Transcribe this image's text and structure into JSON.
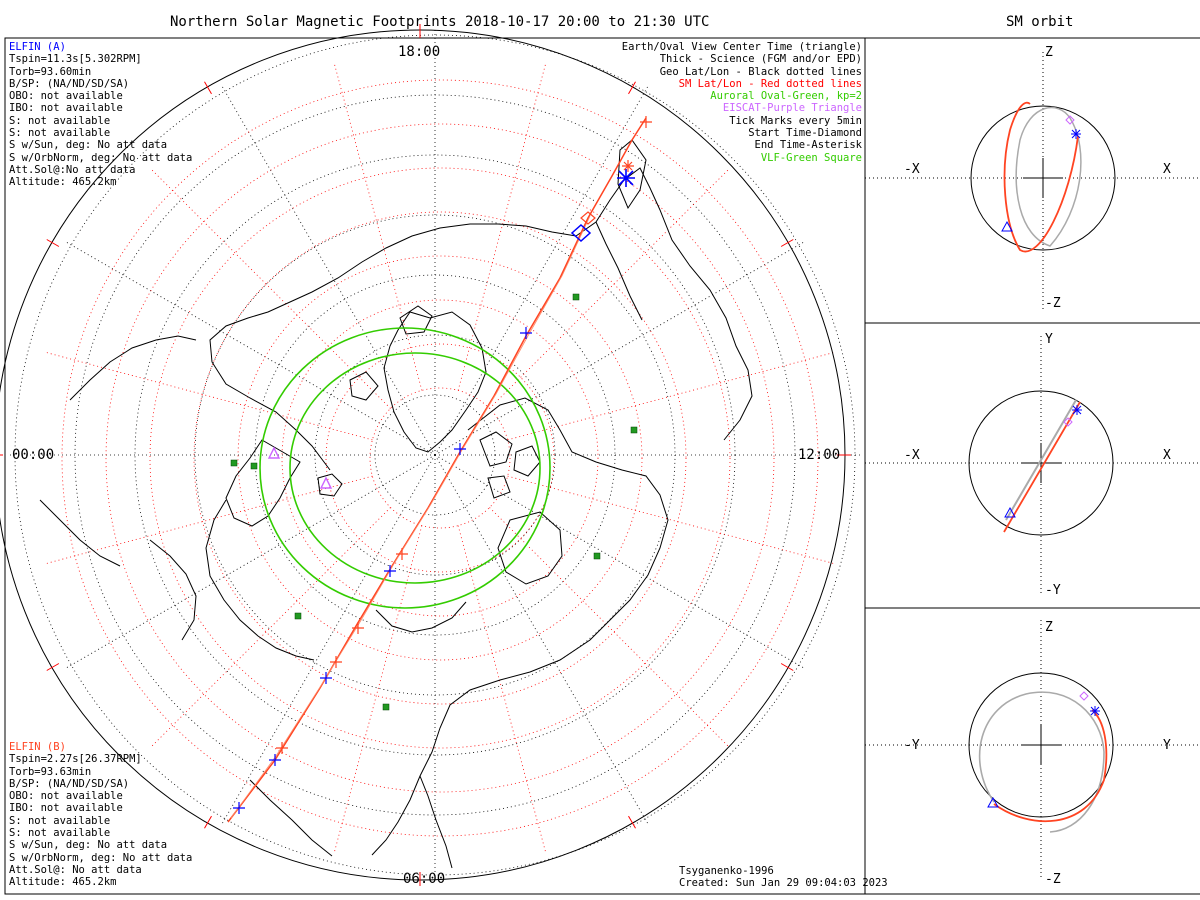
{
  "title": "Northern Solar Magnetic Footprints 2018-10-17 20:00 to 21:30 UTC",
  "orbit_title": "SM orbit",
  "hour_labels": {
    "top": "18:00",
    "left": "00:00",
    "right": "12:00",
    "bottom": "06:00"
  },
  "elfin_a": {
    "name": "ELFIN (A)",
    "lines": [
      "Tspin=11.3s[5.302RPM]",
      "Torb=93.60min",
      "B/SP: (NA/ND/SD/SA)",
      "OBO: not available",
      "IBO: not available",
      "S: not available",
      "S: not available",
      "S w/Sun, deg: No att data",
      "S w/OrbNorm, deg: No att data",
      "Att.Sol@:No att data",
      "Altitude: 465.2km"
    ]
  },
  "elfin_b": {
    "name": "ELFIN (B)",
    "lines": [
      "Tspin=2.27s[26.37RPM]",
      "Torb=93.63min",
      "B/SP: (NA/ND/SD/SA)",
      "OBO: not available",
      "IBO: not available",
      "S: not available",
      "S: not available",
      "S w/Sun, deg: No att data",
      "S w/OrbNorm, deg: No att data",
      "Att.Sol@: No att data",
      "Altitude: 465.2km"
    ]
  },
  "legend": [
    {
      "text": "Earth/Oval View Center Time (triangle)",
      "color": "#000000"
    },
    {
      "text": "Thick - Science (FGM and/or EPD)",
      "color": "#000000"
    },
    {
      "text": "Geo Lat/Lon - Black dotted lines",
      "color": "#000000"
    },
    {
      "text": "SM Lat/Lon - Red dotted lines",
      "color": "#ff0000"
    },
    {
      "text": "Auroral Oval-Green, kp=2",
      "color": "#33cc00"
    },
    {
      "text": "EISCAT-Purple Triangle",
      "color": "#cc66ff"
    },
    {
      "text": "Tick Marks every 5min",
      "color": "#000000"
    },
    {
      "text": "Start Time-Diamond",
      "color": "#000000"
    },
    {
      "text": "End Time-Asterisk",
      "color": "#000000"
    },
    {
      "text": "VLF-Green Square",
      "color": "#33cc00"
    }
  ],
  "model_label": "Tsyganenko-1996",
  "created_label": "Created: Sun Jan 29 09:04:03 2023",
  "panels": [
    {
      "top": "Z",
      "bottom": "-Z",
      "left": "-X",
      "right": "X"
    },
    {
      "top": "Y",
      "bottom": "-Y",
      "left": "-X",
      "right": "X"
    },
    {
      "top": "Z",
      "bottom": "-Z",
      "left": "-Y",
      "right": "Y"
    }
  ],
  "colors": {
    "elfin_a": "#0000ff",
    "elfin_b": "#ff4422",
    "oval": "#33cc00",
    "eiscat": "#cc66ff",
    "sm_grid": "#ff0000",
    "orbit_gray": "#aaaaaa"
  }
}
